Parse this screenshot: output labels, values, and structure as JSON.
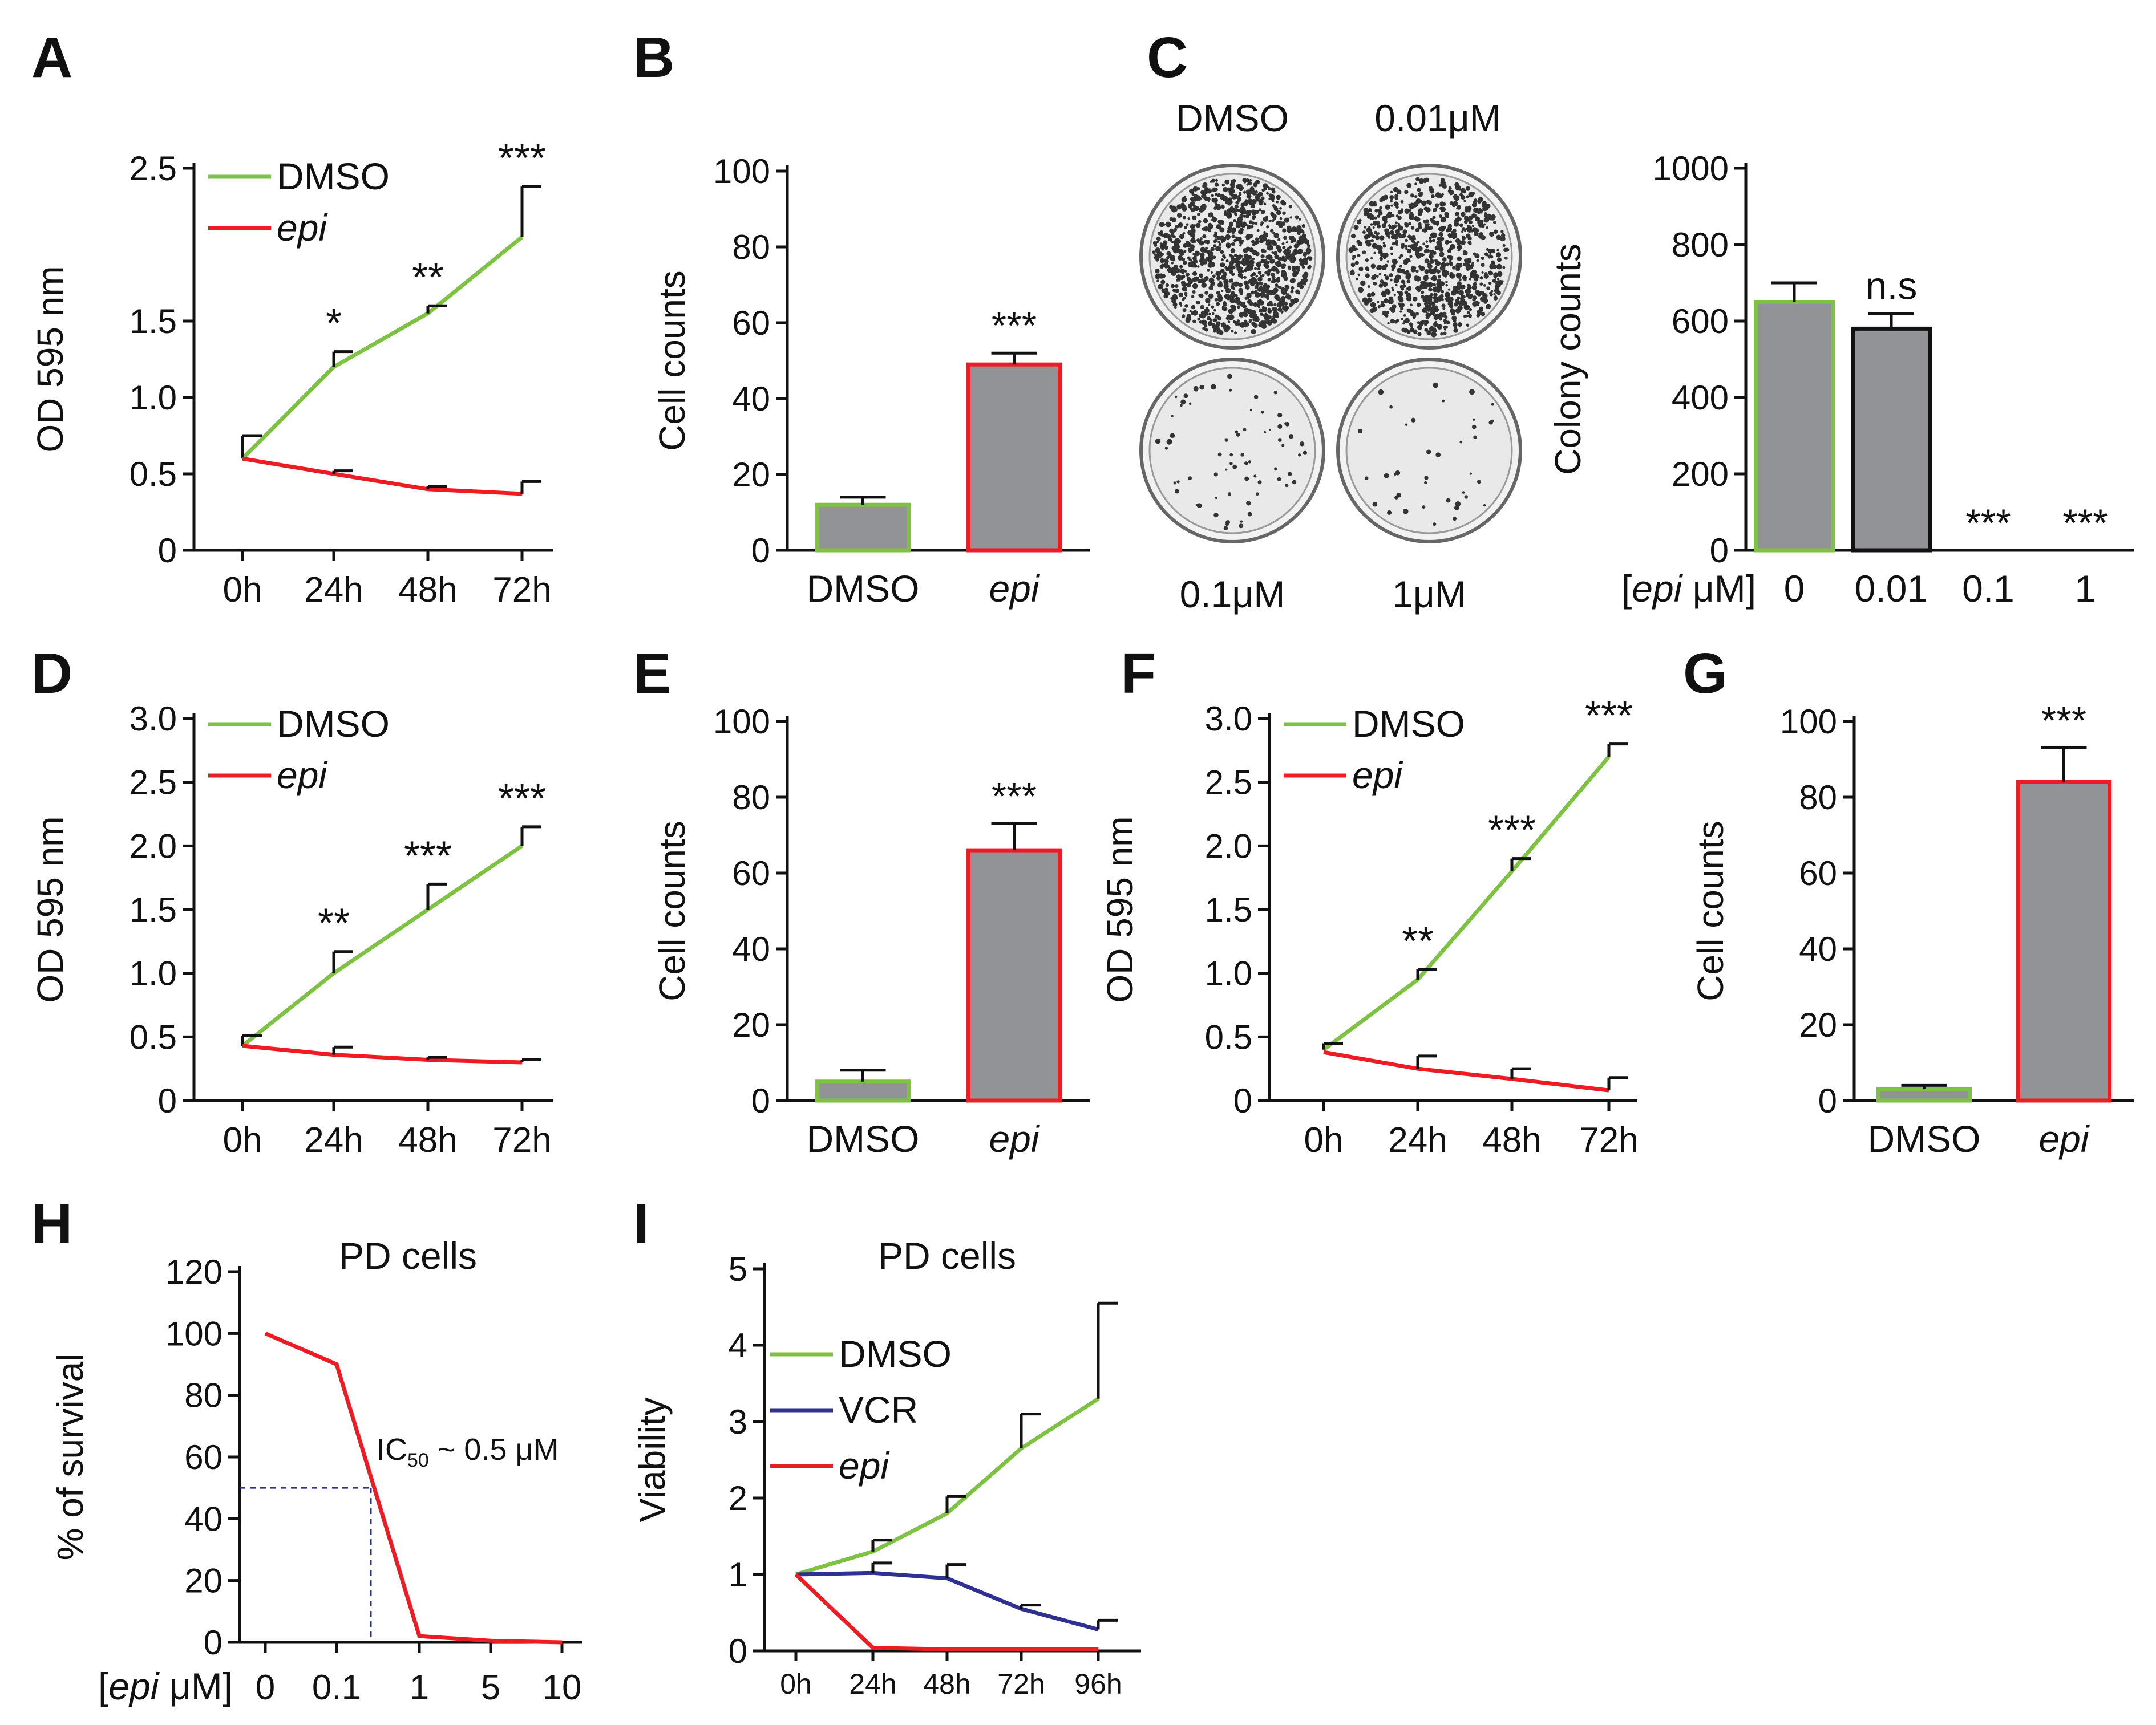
{
  "colors": {
    "dmso": "#7dc242",
    "epi": "#ed1c24",
    "vcr": "#2e3192",
    "bar_fill": "#929396",
    "axis": "#111111",
    "ref": "#2e3192"
  },
  "chart_data": [
    {
      "id": "A",
      "type": "line",
      "ylabel": "OD  595 nm",
      "categories": [
        "0h",
        "24h",
        "48h",
        "72h"
      ],
      "yticks": [
        "0",
        "0.5",
        "1.0",
        "1.5",
        "2.5"
      ],
      "series": [
        {
          "name": "DMSO",
          "values": [
            0.6,
            1.2,
            1.55,
            2.05
          ],
          "errors": [
            0.15,
            0.1,
            0.05,
            0.33
          ],
          "sig": [
            "",
            "*",
            "**",
            "***"
          ]
        },
        {
          "name": "epi",
          "italic": true,
          "values": [
            0.6,
            0.5,
            0.4,
            0.37
          ],
          "errors": [
            0,
            0.02,
            0.02,
            0.08
          ]
        }
      ]
    },
    {
      "id": "B",
      "type": "bar",
      "ylabel": "Cell counts",
      "categories": [
        "DMSO",
        "epi"
      ],
      "values": [
        12,
        49
      ],
      "errors": [
        2,
        3
      ],
      "sig": [
        "",
        "***"
      ],
      "yticks": [
        "0",
        "20",
        "40",
        "60",
        "80",
        "100"
      ]
    },
    {
      "id": "C",
      "type": "bar",
      "ylabel": "Colony counts",
      "xlabel_prefix": "[",
      "xlabel_italic": "epi",
      "xlabel_suffix": " μM]",
      "categories": [
        "0",
        "0.01",
        "0.1",
        "1"
      ],
      "values": [
        650,
        580,
        0,
        0
      ],
      "errors": [
        50,
        40,
        0,
        0
      ],
      "sig": [
        "",
        "n.s",
        "***",
        "***"
      ],
      "yticks": [
        "0",
        "200",
        "400",
        "600",
        "800",
        "1000"
      ],
      "dishes": [
        "DMSO",
        "0.01μM",
        "0.1μM",
        "1μM"
      ]
    },
    {
      "id": "D",
      "type": "line",
      "ylabel": "OD  595 nm",
      "categories": [
        "0h",
        "24h",
        "48h",
        "72h"
      ],
      "yticks": [
        "0",
        "0.5",
        "1.0",
        "1.5",
        "2.0",
        "2.5",
        "3.0"
      ],
      "series": [
        {
          "name": "DMSO",
          "values": [
            0.43,
            1.0,
            1.5,
            2.0
          ],
          "errors": [
            0.08,
            0.17,
            0.2,
            0.15
          ],
          "sig": [
            "",
            "**",
            "***",
            "***"
          ]
        },
        {
          "name": "epi",
          "italic": true,
          "values": [
            0.43,
            0.36,
            0.32,
            0.3
          ],
          "errors": [
            0,
            0.06,
            0.02,
            0.02
          ]
        }
      ]
    },
    {
      "id": "E",
      "type": "bar",
      "ylabel": "Cell counts",
      "categories": [
        "DMSO",
        "epi"
      ],
      "values": [
        5,
        66
      ],
      "errors": [
        3,
        7
      ],
      "sig": [
        "",
        "***"
      ],
      "yticks": [
        "0",
        "20",
        "40",
        "60",
        "80",
        "100"
      ]
    },
    {
      "id": "F",
      "type": "line",
      "ylabel": "OD  595 nm",
      "categories": [
        "0h",
        "24h",
        "48h",
        "72h"
      ],
      "yticks": [
        "0",
        "0.5",
        "1.0",
        "1.5",
        "2.0",
        "2.5",
        "3.0"
      ],
      "series": [
        {
          "name": "DMSO",
          "values": [
            0.4,
            0.95,
            1.8,
            2.7
          ],
          "errors": [
            0.05,
            0.08,
            0.1,
            0.1
          ],
          "sig": [
            "",
            "**",
            "***",
            "***"
          ]
        },
        {
          "name": "epi",
          "italic": true,
          "values": [
            0.38,
            0.25,
            0.17,
            0.08
          ],
          "errors": [
            0,
            0.1,
            0.08,
            0.1
          ]
        }
      ]
    },
    {
      "id": "G",
      "type": "bar",
      "ylabel": "Cell counts",
      "categories": [
        "DMSO",
        "epi"
      ],
      "values": [
        3,
        84
      ],
      "errors": [
        1,
        9
      ],
      "sig": [
        "",
        "***"
      ],
      "yticks": [
        "0",
        "20",
        "40",
        "60",
        "80",
        "100"
      ]
    },
    {
      "id": "H",
      "type": "line",
      "title": "PD cells",
      "ylabel": "% of survival",
      "xlabel_prefix": "[",
      "xlabel_italic": "epi",
      "xlabel_suffix": " μM]",
      "categories": [
        "0",
        "0.1",
        "1",
        "5",
        "10"
      ],
      "yticks": [
        "0",
        "20",
        "40",
        "60",
        "80",
        "100",
        "120"
      ],
      "series": [
        {
          "name": "epi",
          "values": [
            100,
            90,
            2,
            0.5,
            0
          ]
        }
      ],
      "ic50_text": "IC",
      "ic50_sub": "50",
      "ic50_value": " ~ 0.5 μM",
      "ic50_reference": {
        "x": 0.5,
        "y": 50
      }
    },
    {
      "id": "I",
      "type": "line",
      "title": "PD cells",
      "ylabel": "Viability",
      "categories": [
        "0h",
        "24h",
        "48h",
        "72h",
        "96h"
      ],
      "yticks": [
        "0",
        "1",
        "2",
        "3",
        "4",
        "5"
      ],
      "series": [
        {
          "name": "DMSO",
          "values": [
            1.0,
            1.3,
            1.8,
            2.65,
            3.3
          ],
          "errors": [
            0,
            0.15,
            0.22,
            0.45,
            1.25
          ]
        },
        {
          "name": "VCR",
          "values": [
            1.0,
            1.02,
            0.95,
            0.55,
            0.28
          ],
          "errors": [
            0,
            0.13,
            0.18,
            0.05,
            0.12
          ]
        },
        {
          "name": "epi",
          "italic": true,
          "values": [
            1.0,
            0.04,
            0.02,
            0.02,
            0.02
          ],
          "errors": [
            0,
            0,
            0,
            0,
            0
          ]
        }
      ]
    }
  ]
}
